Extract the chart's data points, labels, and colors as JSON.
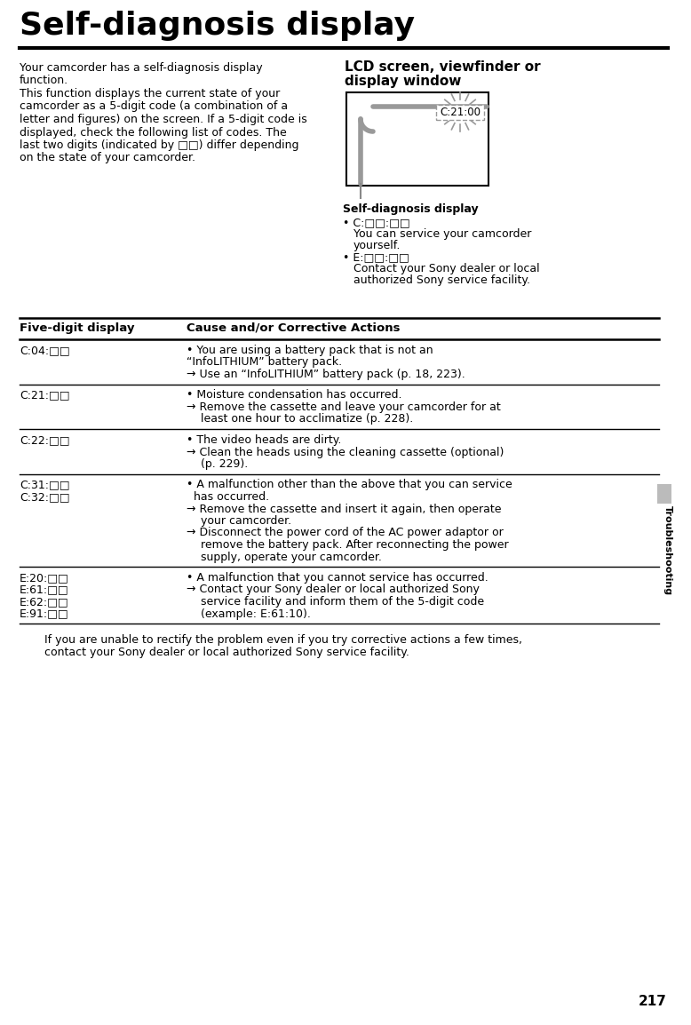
{
  "title": "Self-diagnosis display",
  "page_number": "217",
  "bg_color": "#ffffff",
  "sidebar_label": "Troubleshooting",
  "intro_text": [
    "Your camcorder has a self-diagnosis display",
    "function.",
    "This function displays the current state of your",
    "camcorder as a 5-digit code (a combination of a",
    "letter and figures) on the screen. If a 5-digit code is",
    "displayed, check the following list of codes. The",
    "last two digits (indicated by □□) differ depending",
    "on the state of your camcorder."
  ],
  "lcd_title_line1": "LCD screen, viewfinder or",
  "lcd_title_line2": "display window",
  "lcd_code": "C:21:00",
  "self_diag_label": "Self-diagnosis display",
  "self_diag_items": [
    {
      "code": "C:□□:□□",
      "desc_lines": [
        "You can service your camcorder",
        "yourself."
      ]
    },
    {
      "code": "E:□□:□□",
      "desc_lines": [
        "Contact your Sony dealer or local",
        "authorized Sony service facility."
      ]
    }
  ],
  "table_col1_header": "Five-digit display",
  "table_col2_header": "Cause and/or Corrective Actions",
  "table_rows": [
    {
      "codes": [
        "C:04:□□"
      ],
      "actions": [
        [
          "• You are using a battery pack that is not an",
          "“InfoLITHIUM” battery pack."
        ],
        [
          "→ Use an “InfoLITHIUM” battery pack (p. 18, 223)."
        ]
      ]
    },
    {
      "codes": [
        "C:21:□□"
      ],
      "actions": [
        [
          "• Moisture condensation has occurred."
        ],
        [
          "→ Remove the cassette and leave your camcorder for at",
          "    least one hour to acclimatize (p. 228)."
        ]
      ]
    },
    {
      "codes": [
        "C:22:□□"
      ],
      "actions": [
        [
          "• The video heads are dirty."
        ],
        [
          "→ Clean the heads using the cleaning cassette (optional)",
          "    (p. 229)."
        ]
      ]
    },
    {
      "codes": [
        "C:31:□□",
        "C:32:□□"
      ],
      "actions": [
        [
          "• A malfunction other than the above that you can service",
          "  has occurred."
        ],
        [
          "→ Remove the cassette and insert it again, then operate",
          "    your camcorder."
        ],
        [
          "→ Disconnect the power cord of the AC power adaptor or",
          "    remove the battery pack. After reconnecting the power",
          "    supply, operate your camcorder."
        ]
      ]
    },
    {
      "codes": [
        "E:20:□□",
        "E:61:□□",
        "E:62:□□",
        "E:91:□□"
      ],
      "actions": [
        [
          "• A malfunction that you cannot service has occurred."
        ],
        [
          "→ Contact your Sony dealer or local authorized Sony",
          "    service facility and inform them of the 5-digit code",
          "    (example: E:61:10)."
        ]
      ]
    }
  ],
  "footer": "If you are unable to rectify the problem even if you try corrective actions a few times,\ncontact your Sony dealer or local authorized Sony service facility."
}
